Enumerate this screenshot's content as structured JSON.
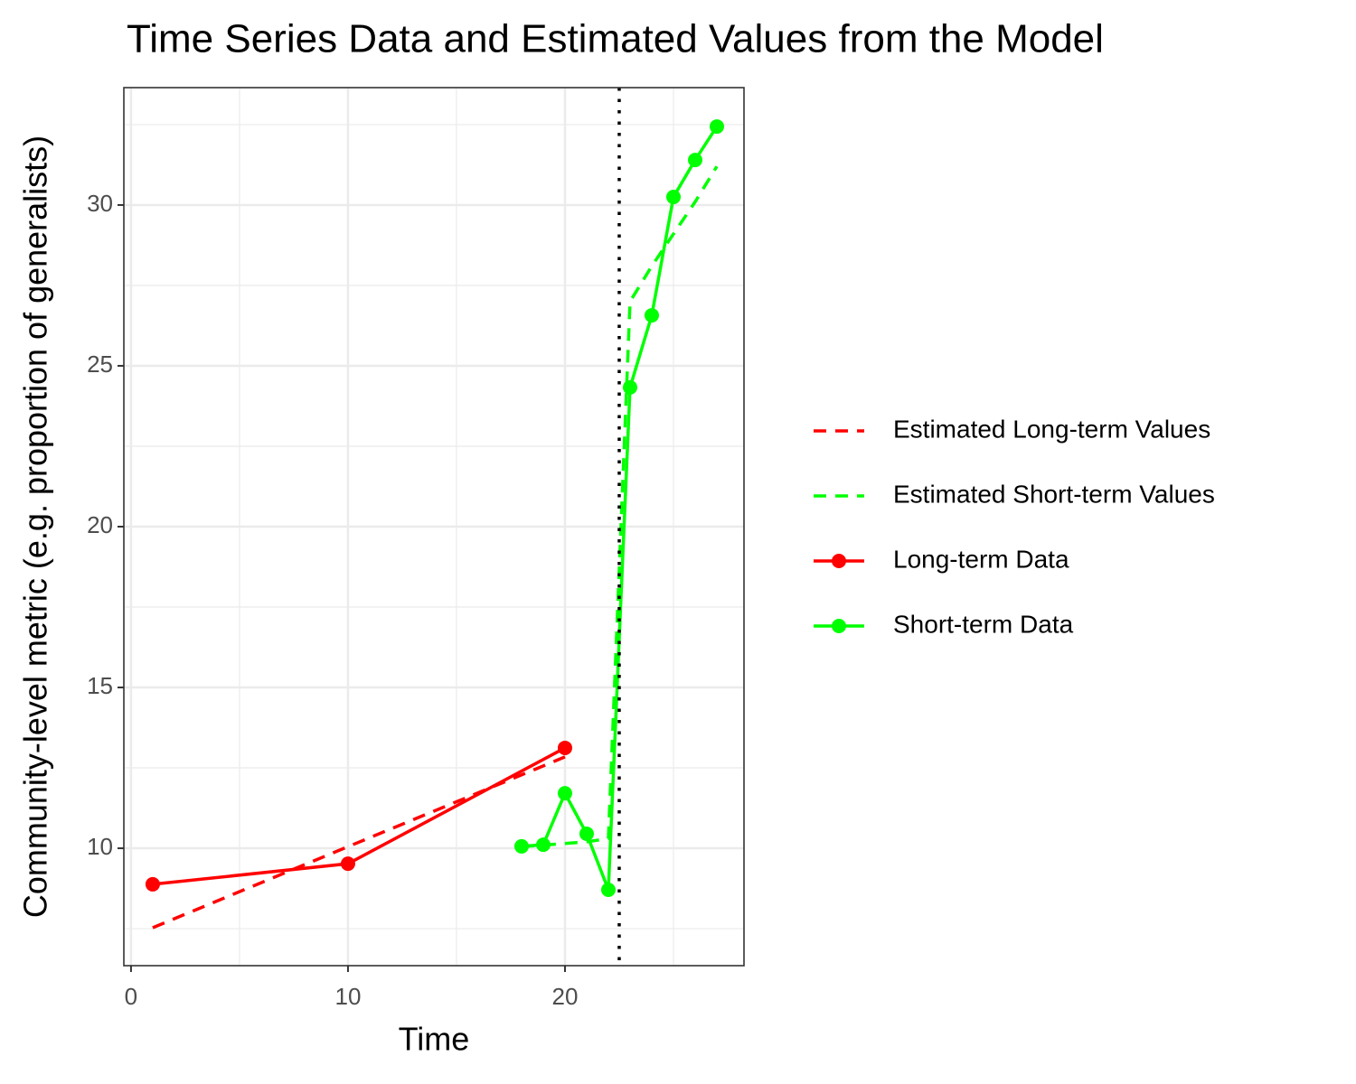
{
  "chart_data": {
    "type": "line",
    "title": "Time Series Data and Estimated Values from the Model",
    "x_label": "Time",
    "y_label": "Community-level metric (e.g. proportion of generalists)",
    "xlim": [
      -0.33,
      28.25
    ],
    "ylim": [
      6.35,
      33.65
    ],
    "xticks": [
      0,
      10,
      20
    ],
    "yticks": [
      10,
      15,
      20,
      25,
      30
    ],
    "minor_xticks": [
      5,
      15,
      25
    ],
    "minor_yticks": [
      7.5,
      12.5,
      17.5,
      22.5,
      27.5,
      32.5
    ],
    "grid": true,
    "legend": "right",
    "vline": {
      "x": 22.5,
      "color": "#000000"
    },
    "series": [
      {
        "name": "Estimated Long-term Values",
        "color": "#ff0000",
        "dashed": true,
        "markers": false,
        "x": [
          1,
          10,
          20
        ],
        "values": [
          7.53,
          10.05,
          12.84
        ]
      },
      {
        "name": "Estimated Short-term Values",
        "color": "#00ff00",
        "dashed": true,
        "markers": false,
        "x": [
          18,
          19,
          20,
          21,
          22,
          23,
          24,
          25,
          26,
          27
        ],
        "values": [
          10.05,
          10.1,
          10.15,
          10.2,
          10.3,
          27.0,
          28.1,
          29.1,
          30.1,
          31.2
        ]
      },
      {
        "name": "Long-term Data",
        "color": "#ff0000",
        "dashed": false,
        "markers": true,
        "x": [
          1,
          10,
          20
        ],
        "values": [
          8.88,
          9.52,
          13.12
        ]
      },
      {
        "name": "Short-term Data",
        "color": "#00ff00",
        "dashed": false,
        "markers": true,
        "x": [
          18,
          19,
          20,
          21,
          22,
          23,
          24,
          25,
          26,
          27
        ],
        "values": [
          10.06,
          10.11,
          11.71,
          10.45,
          8.71,
          24.33,
          26.57,
          30.25,
          31.4,
          32.44
        ]
      }
    ]
  }
}
